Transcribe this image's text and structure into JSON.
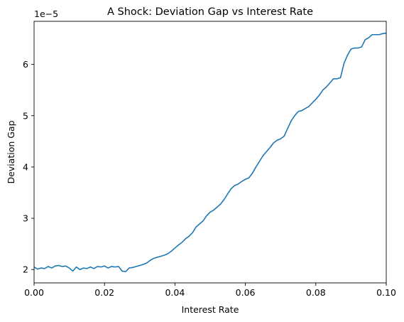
{
  "chart_data": {
    "type": "line",
    "title": "A Shock: Deviation Gap vs Interest Rate",
    "xlabel": "Interest Rate",
    "ylabel": "Deviation Gap",
    "y_offset_label": "1e−5",
    "xlim": [
      0.0,
      0.1
    ],
    "ylim": [
      1.74,
      6.84
    ],
    "x_ticks": [
      0.0,
      0.02,
      0.04,
      0.06,
      0.08,
      0.1
    ],
    "x_tick_labels": [
      "0.00",
      "0.02",
      "0.04",
      "0.06",
      "0.08",
      "0.10"
    ],
    "y_ticks": [
      2,
      3,
      4,
      5,
      6
    ],
    "y_tick_labels": [
      "2",
      "3",
      "4",
      "5",
      "6"
    ],
    "grid": false,
    "series": [
      {
        "color": "#1f77b4",
        "x": [
          0.0,
          0.001,
          0.002,
          0.003,
          0.004,
          0.005,
          0.006,
          0.007,
          0.008,
          0.009,
          0.01,
          0.011,
          0.012,
          0.013,
          0.014,
          0.015,
          0.016,
          0.017,
          0.018,
          0.019,
          0.02,
          0.021,
          0.022,
          0.023,
          0.024,
          0.025,
          0.026,
          0.027,
          0.028,
          0.029,
          0.03,
          0.031,
          0.032,
          0.033,
          0.034,
          0.035,
          0.036,
          0.037,
          0.038,
          0.039,
          0.04,
          0.041,
          0.042,
          0.043,
          0.044,
          0.045,
          0.046,
          0.047,
          0.048,
          0.049,
          0.05,
          0.051,
          0.052,
          0.053,
          0.054,
          0.055,
          0.056,
          0.057,
          0.058,
          0.059,
          0.06,
          0.061,
          0.062,
          0.063,
          0.064,
          0.065,
          0.066,
          0.067,
          0.068,
          0.069,
          0.07,
          0.071,
          0.072,
          0.073,
          0.074,
          0.075,
          0.076,
          0.077,
          0.078,
          0.079,
          0.08,
          0.081,
          0.082,
          0.083,
          0.084,
          0.085,
          0.086,
          0.087,
          0.088,
          0.089,
          0.09,
          0.091,
          0.092,
          0.093,
          0.094,
          0.095,
          0.096,
          0.097,
          0.098,
          0.099,
          0.1
        ],
        "y": [
          2.05,
          2.01,
          2.03,
          2.02,
          2.06,
          2.03,
          2.07,
          2.08,
          2.06,
          2.07,
          2.03,
          1.97,
          2.05,
          2.0,
          2.03,
          2.02,
          2.05,
          2.02,
          2.06,
          2.05,
          2.07,
          2.03,
          2.06,
          2.05,
          2.06,
          1.97,
          1.96,
          2.03,
          2.04,
          2.06,
          2.08,
          2.1,
          2.13,
          2.18,
          2.22,
          2.24,
          2.26,
          2.28,
          2.31,
          2.36,
          2.42,
          2.48,
          2.53,
          2.6,
          2.65,
          2.72,
          2.83,
          2.89,
          2.95,
          3.05,
          3.12,
          3.16,
          3.22,
          3.28,
          3.37,
          3.48,
          3.58,
          3.64,
          3.67,
          3.72,
          3.76,
          3.79,
          3.88,
          4.0,
          4.11,
          4.22,
          4.3,
          4.38,
          4.47,
          4.52,
          4.55,
          4.6,
          4.75,
          4.9,
          5.0,
          5.08,
          5.1,
          5.14,
          5.18,
          5.25,
          5.32,
          5.4,
          5.5,
          5.56,
          5.64,
          5.72,
          5.72,
          5.74,
          6.02,
          6.18,
          6.3,
          6.32,
          6.32,
          6.34,
          6.48,
          6.52,
          6.58,
          6.58,
          6.58,
          6.6,
          6.61
        ]
      }
    ]
  }
}
